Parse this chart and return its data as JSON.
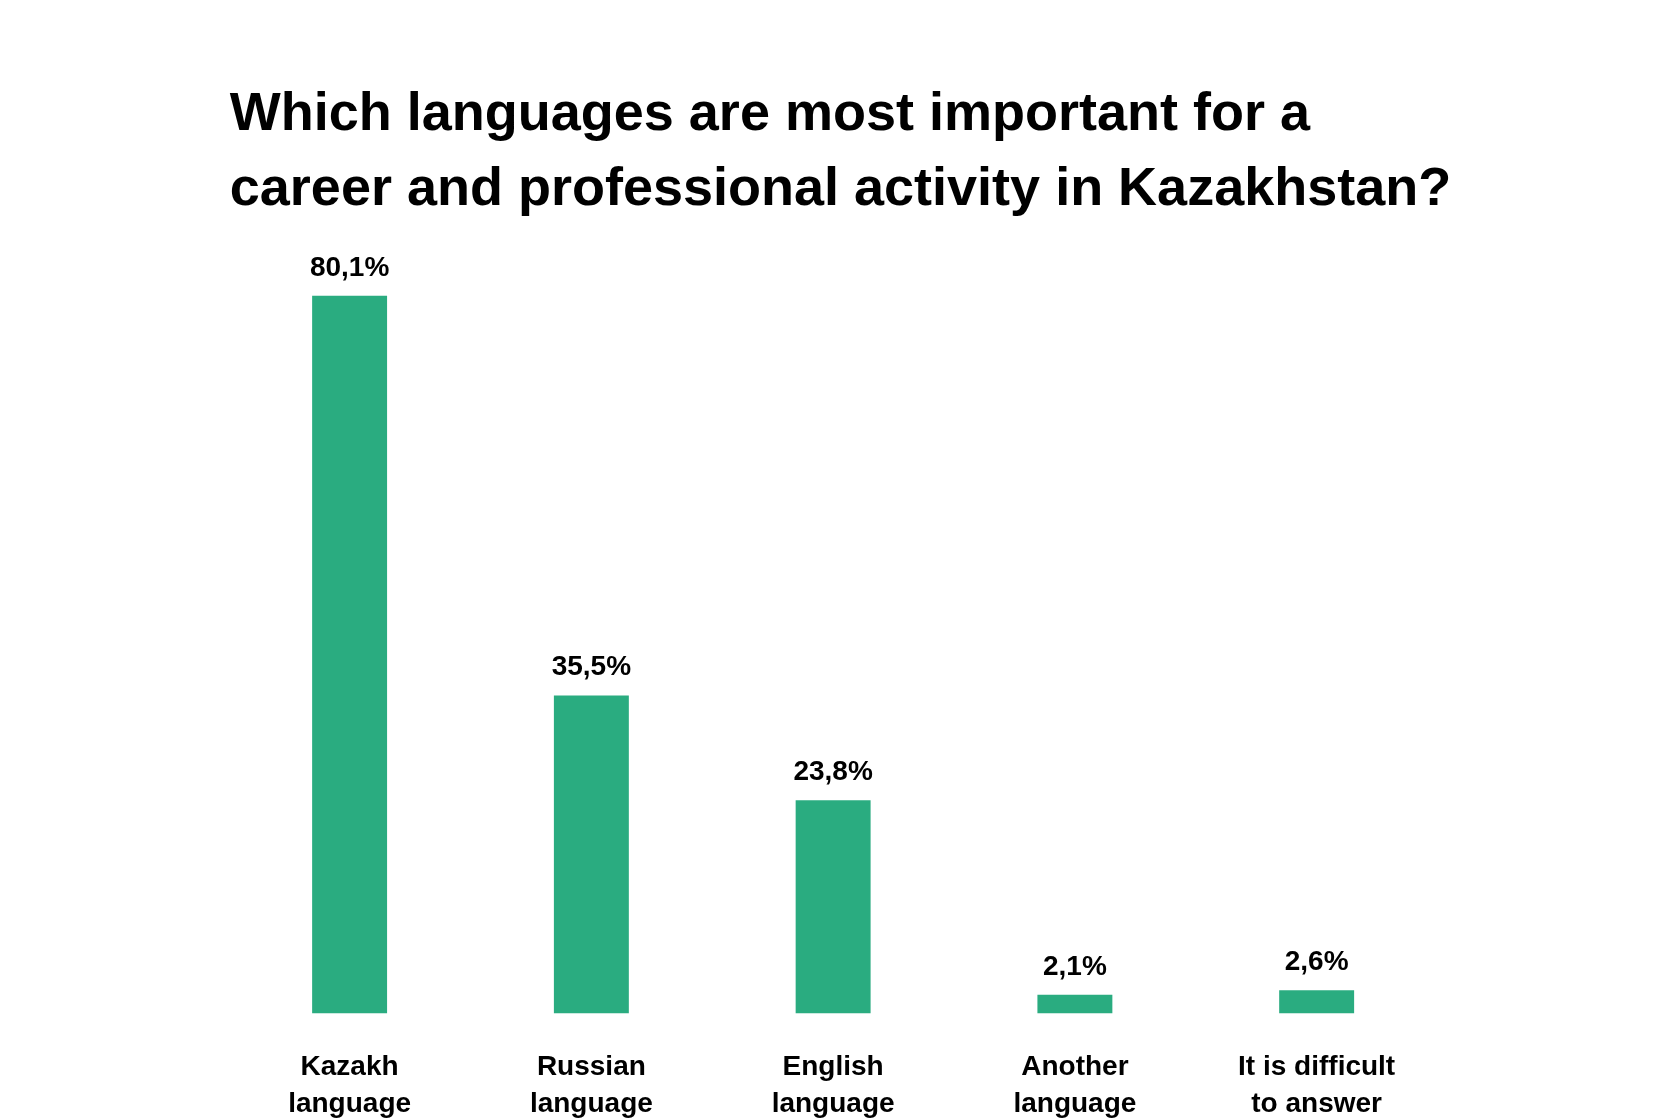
{
  "chart_data": {
    "type": "bar",
    "title": "Which languages are most important for a career and professional activity in Kazakhstan?",
    "categories": [
      "Kazakh language",
      "Russian language",
      "English language",
      "Another language",
      "It is difficult to answer"
    ],
    "values": [
      80.1,
      35.5,
      23.8,
      2.1,
      2.6
    ],
    "color": "#2aac80",
    "value_labels": [
      "80,1%",
      "35,5%",
      "23,8%",
      "2,1%",
      "2,6%"
    ],
    "tick_labels": "x",
    "grid": false
  }
}
